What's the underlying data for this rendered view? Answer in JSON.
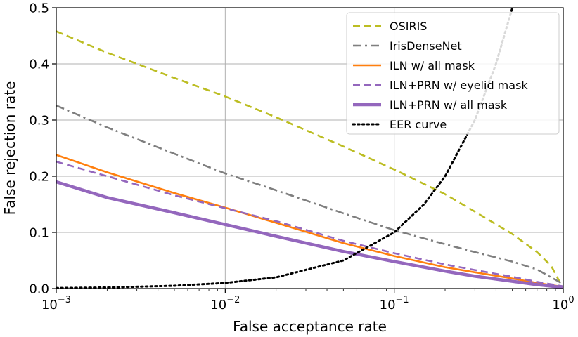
{
  "chart_data": {
    "type": "line",
    "title": "",
    "xlabel": "False acceptance rate",
    "ylabel": "False rejection rate",
    "xscale": "log",
    "xlim": [
      0.001,
      1.0
    ],
    "ylim": [
      0.0,
      0.5
    ],
    "grid": true,
    "legend_position": "top-right",
    "x_ticks": [
      {
        "value": 0.001,
        "base": "10",
        "exp": "−3"
      },
      {
        "value": 0.01,
        "base": "10",
        "exp": "−2"
      },
      {
        "value": 0.1,
        "base": "10",
        "exp": "−1"
      },
      {
        "value": 1.0,
        "base": "10",
        "exp": "0"
      }
    ],
    "y_ticks": [
      {
        "value": 0.0,
        "label": "0.0"
      },
      {
        "value": 0.1,
        "label": "0.1"
      },
      {
        "value": 0.2,
        "label": "0.2"
      },
      {
        "value": 0.3,
        "label": "0.3"
      },
      {
        "value": 0.4,
        "label": "0.4"
      },
      {
        "value": 0.5,
        "label": "0.5"
      }
    ],
    "series": [
      {
        "name": "OSIRIS",
        "color": "#bcbd22",
        "style": "dashed",
        "x": [
          0.001,
          0.002,
          0.005,
          0.01,
          0.02,
          0.05,
          0.1,
          0.2,
          0.3,
          0.5,
          0.7,
          0.85,
          1.0
        ],
        "y": [
          0.458,
          0.42,
          0.375,
          0.342,
          0.305,
          0.253,
          0.212,
          0.168,
          0.137,
          0.097,
          0.065,
          0.04,
          0.0
        ]
      },
      {
        "name": "IrisDenseNet",
        "color": "#7f7f7f",
        "style": "dashdot",
        "x": [
          0.001,
          0.002,
          0.005,
          0.01,
          0.02,
          0.05,
          0.1,
          0.2,
          0.3,
          0.5,
          0.7,
          1.0
        ],
        "y": [
          0.326,
          0.287,
          0.24,
          0.205,
          0.175,
          0.134,
          0.104,
          0.079,
          0.065,
          0.048,
          0.034,
          0.008
        ]
      },
      {
        "name": "ILN w/ all mask",
        "color": "#ff7f0e",
        "style": "solid",
        "x": [
          0.001,
          0.002,
          0.005,
          0.01,
          0.02,
          0.05,
          0.1,
          0.2,
          0.3,
          0.5,
          0.7,
          1.0
        ],
        "y": [
          0.238,
          0.207,
          0.17,
          0.144,
          0.117,
          0.081,
          0.058,
          0.038,
          0.029,
          0.018,
          0.01,
          0.003
        ]
      },
      {
        "name": "ILN+PRN w/ eyelid mask",
        "color": "#9467bd",
        "style": "dashed",
        "x": [
          0.001,
          0.002,
          0.005,
          0.01,
          0.02,
          0.05,
          0.1,
          0.2,
          0.3,
          0.5,
          0.7,
          1.0
        ],
        "y": [
          0.226,
          0.2,
          0.166,
          0.143,
          0.12,
          0.085,
          0.063,
          0.043,
          0.033,
          0.021,
          0.012,
          0.004
        ]
      },
      {
        "name": "ILN+PRN w/ all mask",
        "color": "#9467bd",
        "style": "thick",
        "x": [
          0.001,
          0.002,
          0.005,
          0.01,
          0.02,
          0.05,
          0.1,
          0.2,
          0.3,
          0.5,
          0.7,
          1.0
        ],
        "y": [
          0.19,
          0.162,
          0.135,
          0.114,
          0.093,
          0.066,
          0.048,
          0.031,
          0.022,
          0.013,
          0.007,
          0.002
        ]
      },
      {
        "name": "EER curve",
        "color": "#000000",
        "style": "dotted",
        "x": [
          0.001,
          0.002,
          0.005,
          0.01,
          0.02,
          0.05,
          0.1,
          0.15,
          0.2,
          0.3,
          0.4,
          0.5
        ],
        "y": [
          0.001,
          0.002,
          0.005,
          0.01,
          0.02,
          0.05,
          0.1,
          0.15,
          0.2,
          0.3,
          0.4,
          0.5
        ]
      }
    ]
  }
}
